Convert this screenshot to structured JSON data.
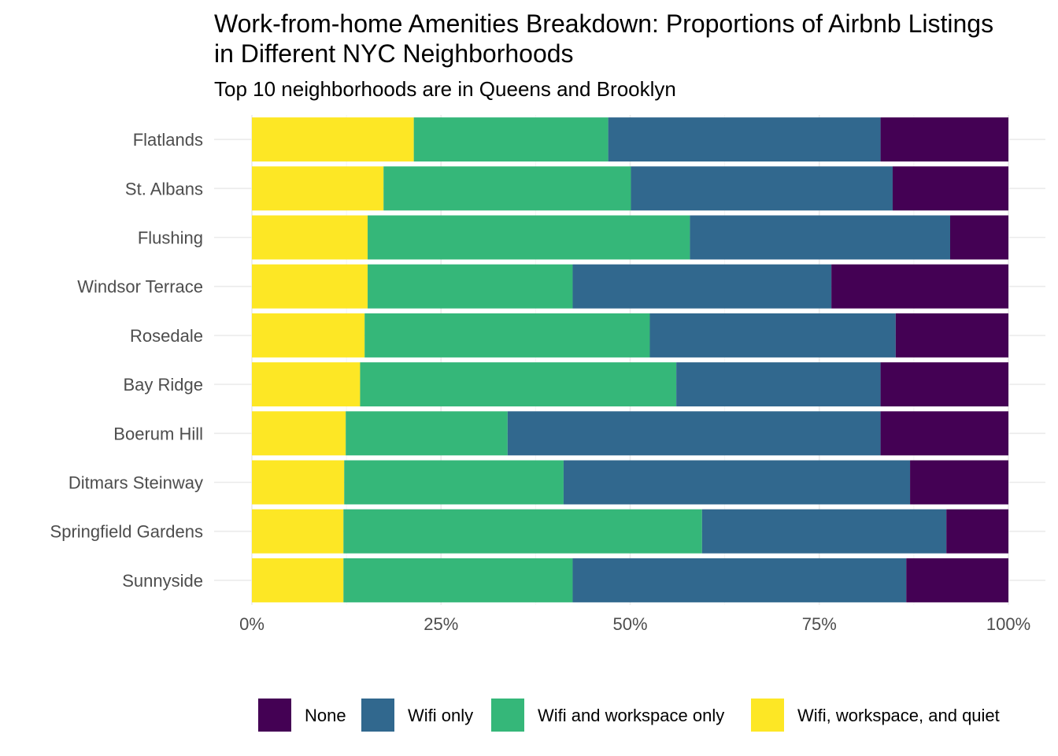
{
  "chart_data": {
    "type": "bar",
    "orientation": "horizontal",
    "stacked": true,
    "normalized": true,
    "title": "Work-from-home Amenities Breakdown: Proportions of Airbnb Listings in Different NYC Neighborhoods",
    "title_lines": [
      "Work-from-home Amenities Breakdown: Proportions of Airbnb Listings",
      "in Different NYC Neighborhoods"
    ],
    "subtitle": "Top 10 neighborhoods are in Queens and Brooklyn",
    "xlabel": "",
    "ylabel": "",
    "xlim": [
      0,
      1
    ],
    "x_ticks": [
      0,
      0.25,
      0.5,
      0.75,
      1
    ],
    "x_tick_labels": [
      "0%",
      "25%",
      "50%",
      "75%",
      "100%"
    ],
    "grid": true,
    "legend_position": "bottom",
    "categories": [
      "Flatlands",
      "St. Albans",
      "Flushing",
      "Windsor Terrace",
      "Rosedale",
      "Bay Ridge",
      "Boerum Hill",
      "Ditmars Steinway",
      "Springfield Gardens",
      "Sunnyside"
    ],
    "stack_order_left_to_right": [
      "Wifi, workspace, and quiet",
      "Wifi and workspace only",
      "Wifi only",
      "None"
    ],
    "series": [
      {
        "name": "None",
        "color": "#440154",
        "values": [
          0.169,
          0.153,
          0.077,
          0.234,
          0.149,
          0.169,
          0.169,
          0.13,
          0.082,
          0.135
        ]
      },
      {
        "name": "Wifi only",
        "color": "#31688E",
        "values": [
          0.36,
          0.346,
          0.344,
          0.342,
          0.325,
          0.27,
          0.493,
          0.458,
          0.323,
          0.441
        ]
      },
      {
        "name": "Wifi and workspace only",
        "color": "#35B779",
        "values": [
          0.257,
          0.327,
          0.426,
          0.271,
          0.377,
          0.418,
          0.214,
          0.29,
          0.474,
          0.303
        ]
      },
      {
        "name": "Wifi, workspace, and quiet",
        "color": "#FDE725",
        "values": [
          0.214,
          0.174,
          0.153,
          0.153,
          0.149,
          0.143,
          0.124,
          0.122,
          0.121,
          0.121
        ]
      }
    ]
  }
}
